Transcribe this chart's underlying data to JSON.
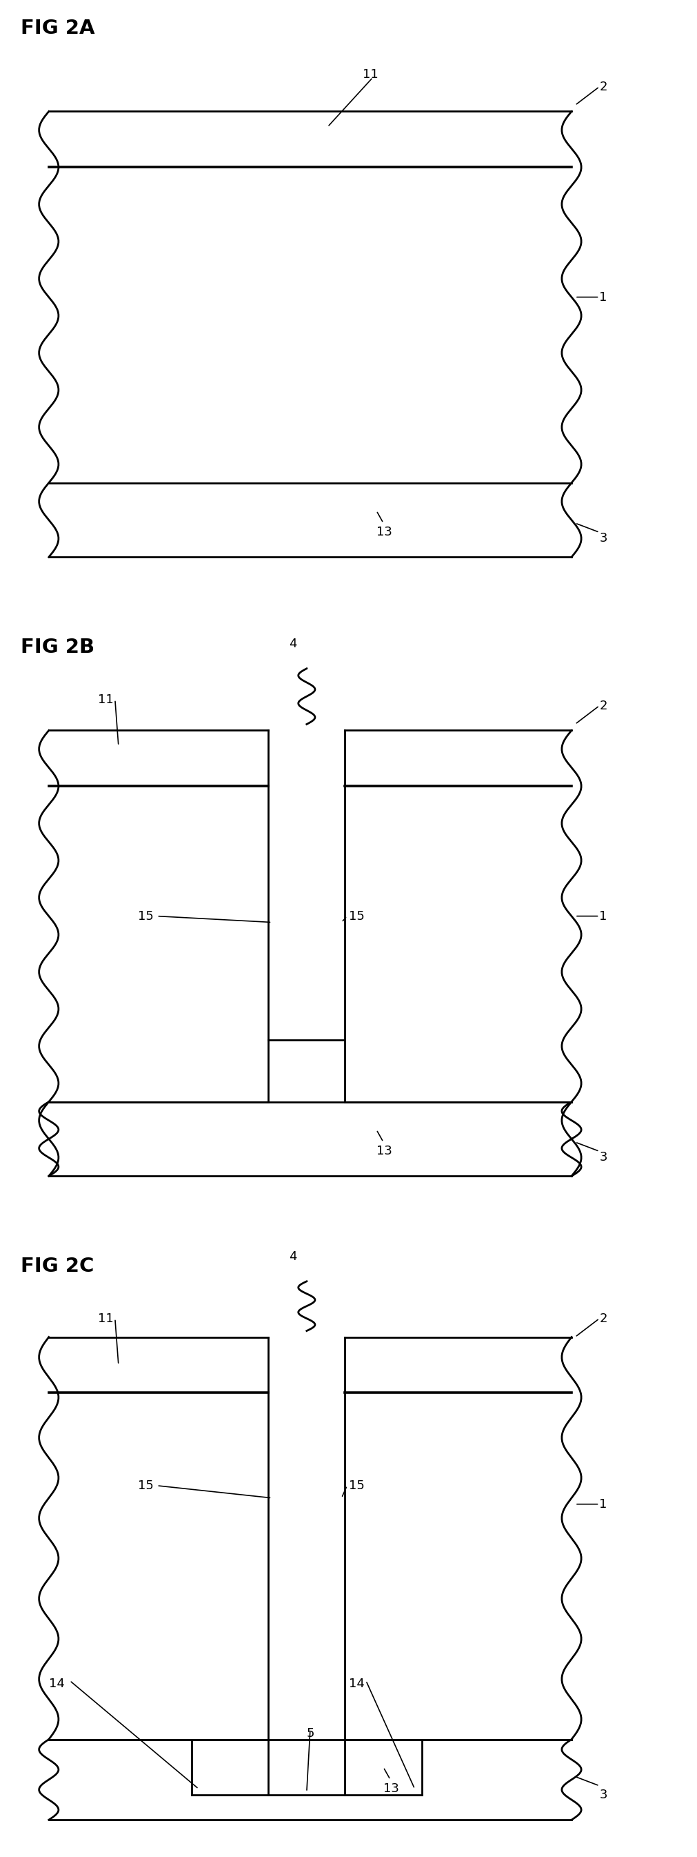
{
  "background_color": "#ffffff",
  "line_color": "#000000",
  "line_width": 2.0,
  "fig_labels": [
    "FIG 2A",
    "FIG 2B",
    "FIG 2C"
  ]
}
